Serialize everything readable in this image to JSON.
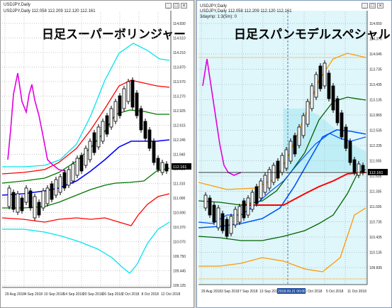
{
  "left_chart": {
    "window_title": "USDJPY,Daily",
    "ohlc_label": "USDJPY,Daily  112.058 112.209 112.120 112.161",
    "overlay_title": "日足スーパーボリンジャー",
    "price_badge": "112.161",
    "price_ticks": [
      "114.830",
      "114.510",
      "114.210",
      "113.870",
      "113.570",
      "113.270",
      "112.925",
      "112.615",
      "112.245",
      "111.940",
      "111.630",
      "111.310",
      "111.000",
      "110.690",
      "110.370",
      "110.070",
      "109.750",
      "109.445",
      "109.125"
    ],
    "date_ticks": [
      "29 Aug 2018",
      "4 Sep 2018",
      "10 Sep 2018",
      "14 Sep 2018",
      "20 Sep 2018",
      "26 Sep 2018",
      "2 Oct 2018",
      "8 Oct 2018",
      "12 Oct 2018"
    ],
    "colors": {
      "upper3": "#00e5ee",
      "upper2": "#ff0000",
      "upper1": "#007700",
      "mid": "#0000ff",
      "lower1": "#007700",
      "lower2": "#ff0000",
      "lower3": "#00e5ee",
      "lagging": "#e000e0",
      "bull": "#ffffff",
      "bear": "#000000"
    }
  },
  "right_chart": {
    "window_title": "USDJPY,Daily",
    "ohlc_label": "USDJPY,Daily  112.058 112.209 112.120 112.161",
    "sub_label": "3daymp: 1:3(5m): 0",
    "overlay_title": "日足スパンモデルスペシャル",
    "price_badge": "112.161",
    "crosshair_date": "2018.09.21 00:00",
    "price_ticks": [
      "114.650",
      "114.370",
      "114.045",
      "113.735",
      "113.435",
      "113.135",
      "112.865",
      "112.535",
      "112.235",
      "111.935",
      "111.635",
      "111.335",
      "111.035",
      "110.735",
      "110.435",
      "110.135",
      "109.835"
    ],
    "date_ticks": [
      "29 Aug 2018",
      "3 Sep 2018",
      "7 Sep 2018",
      "13 Sep 2018",
      "2018.09.21 00:00",
      "1 Oct 2018",
      "5 Oct 2018",
      "11 Oct 2018"
    ],
    "colors": {
      "cloud": "#bfeef6",
      "bg": "#dff6fa",
      "orange": "#ff9900",
      "green": "#006400",
      "blue": "#0055ff",
      "red": "#ff0000",
      "lagging": "#e000e0"
    }
  },
  "window_buttons": {
    "minimize": "_",
    "maximize": "□",
    "close": "×"
  }
}
